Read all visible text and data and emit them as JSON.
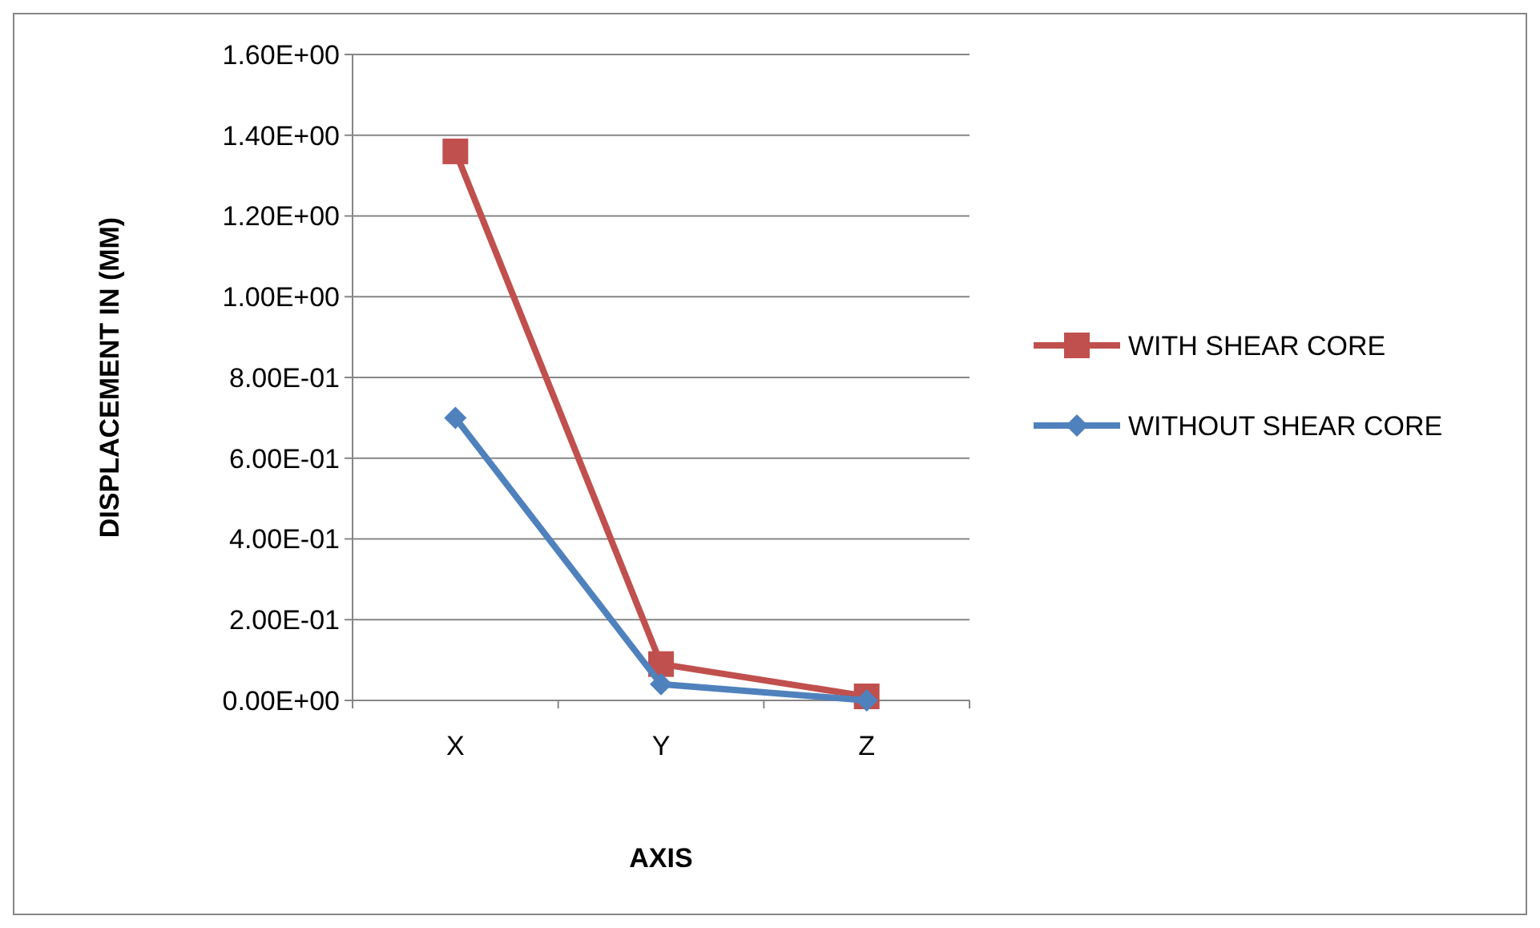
{
  "chart_data": {
    "type": "line",
    "xlabel": "AXIS",
    "ylabel": "DISPLACEMENT IN (MM)",
    "categories": [
      "X",
      "Y",
      "Z"
    ],
    "series": [
      {
        "name": "WITH SHEAR CORE",
        "color": "#c0504d",
        "marker": "square",
        "values": [
          1.36,
          0.09,
          0.01
        ]
      },
      {
        "name": "WITHOUT SHEAR CORE",
        "color": "#4f81bd",
        "marker": "diamond",
        "values": [
          0.7,
          0.04,
          0
        ]
      }
    ],
    "ylim": [
      0,
      1.6
    ],
    "yticks": [
      {
        "value": 0,
        "label": "0.00E+00"
      },
      {
        "value": 0.2,
        "label": "2.00E-01"
      },
      {
        "value": 0.4,
        "label": "4.00E-01"
      },
      {
        "value": 0.6,
        "label": "6.00E-01"
      },
      {
        "value": 0.8,
        "label": "8.00E-01"
      },
      {
        "value": 1,
        "label": "1.00E+00"
      },
      {
        "value": 1.2,
        "label": "1.20E+00"
      },
      {
        "value": 1.4,
        "label": "1.40E+00"
      },
      {
        "value": 1.6,
        "label": "1.60E+00"
      }
    ],
    "grid": "y",
    "legend": "right"
  }
}
